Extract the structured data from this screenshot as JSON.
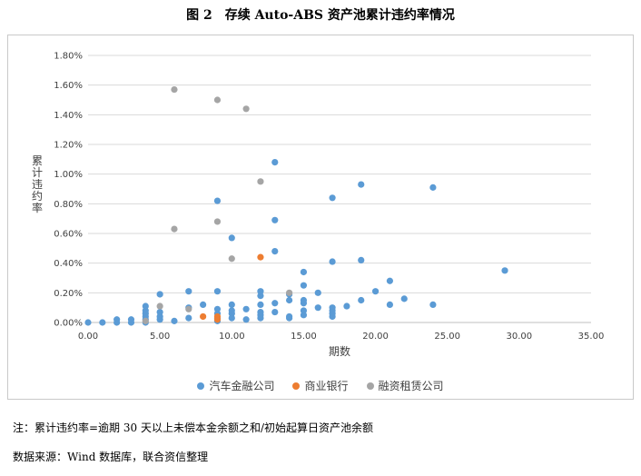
{
  "title": "图 2　存续 Auto-ABS 资产池累计违约率情况",
  "note": "注：累计违约率=逾期 30 天以上未偿本金余额之和/初始起算日资产池余额",
  "source": "数据来源：Wind 数据库，联合资信整理",
  "chart_data": {
    "type": "scatter",
    "title": "",
    "xlabel": "期数",
    "ylabel": "累计违约率",
    "xlim": [
      0,
      35
    ],
    "ylim": [
      0,
      1.8
    ],
    "x_ticks": [
      "0.00",
      "5.00",
      "10.00",
      "15.00",
      "20.00",
      "25.00",
      "30.00",
      "35.00"
    ],
    "y_ticks": [
      "0.00%",
      "0.20%",
      "0.40%",
      "0.60%",
      "0.80%",
      "1.00%",
      "1.20%",
      "1.40%",
      "1.60%",
      "1.80%"
    ],
    "grid": "horizontal",
    "legend_position": "bottom",
    "series": [
      {
        "name": "汽车金融公司",
        "color": "#5b9bd5",
        "points": [
          [
            0,
            0.0
          ],
          [
            1,
            0.0
          ],
          [
            2,
            0.0
          ],
          [
            2,
            0.02
          ],
          [
            3,
            0.0
          ],
          [
            3,
            0.02
          ],
          [
            4,
            0.0
          ],
          [
            4,
            0.02
          ],
          [
            4,
            0.04
          ],
          [
            4,
            0.06
          ],
          [
            4,
            0.08
          ],
          [
            4,
            0.11
          ],
          [
            5,
            0.02
          ],
          [
            5,
            0.04
          ],
          [
            5,
            0.07
          ],
          [
            5,
            0.19
          ],
          [
            6,
            0.01
          ],
          [
            7,
            0.03
          ],
          [
            7,
            0.1
          ],
          [
            7,
            0.21
          ],
          [
            8,
            0.12
          ],
          [
            9,
            0.01
          ],
          [
            9,
            0.03
          ],
          [
            9,
            0.06
          ],
          [
            9,
            0.09
          ],
          [
            9,
            0.21
          ],
          [
            9,
            0.82
          ],
          [
            10,
            0.03
          ],
          [
            10,
            0.06
          ],
          [
            10,
            0.08
          ],
          [
            10,
            0.12
          ],
          [
            10,
            0.57
          ],
          [
            11,
            0.02
          ],
          [
            11,
            0.09
          ],
          [
            12,
            0.03
          ],
          [
            12,
            0.05
          ],
          [
            12,
            0.07
          ],
          [
            12,
            0.12
          ],
          [
            12,
            0.18
          ],
          [
            12,
            0.21
          ],
          [
            13,
            0.07
          ],
          [
            13,
            0.13
          ],
          [
            13,
            0.48
          ],
          [
            13,
            0.69
          ],
          [
            13,
            1.08
          ],
          [
            14,
            0.03
          ],
          [
            14,
            0.04
          ],
          [
            14,
            0.15
          ],
          [
            14,
            0.19
          ],
          [
            15,
            0.05
          ],
          [
            15,
            0.08
          ],
          [
            15,
            0.13
          ],
          [
            15,
            0.15
          ],
          [
            15,
            0.25
          ],
          [
            15,
            0.34
          ],
          [
            16,
            0.1
          ],
          [
            16,
            0.2
          ],
          [
            17,
            0.04
          ],
          [
            17,
            0.06
          ],
          [
            17,
            0.08
          ],
          [
            17,
            0.1
          ],
          [
            17,
            0.41
          ],
          [
            17,
            0.84
          ],
          [
            18,
            0.11
          ],
          [
            19,
            0.15
          ],
          [
            19,
            0.42
          ],
          [
            19,
            0.93
          ],
          [
            20,
            0.21
          ],
          [
            21,
            0.12
          ],
          [
            21,
            0.28
          ],
          [
            22,
            0.16
          ],
          [
            24,
            0.12
          ],
          [
            24,
            0.91
          ],
          [
            29,
            0.35
          ]
        ]
      },
      {
        "name": "商业银行",
        "color": "#ed7d31",
        "points": [
          [
            8,
            0.04
          ],
          [
            9,
            0.02
          ],
          [
            9,
            0.04
          ],
          [
            12,
            0.44
          ]
        ]
      },
      {
        "name": "融资租赁公司",
        "color": "#a5a5a5",
        "points": [
          [
            4,
            0.01
          ],
          [
            5,
            0.11
          ],
          [
            6,
            0.63
          ],
          [
            6,
            1.57
          ],
          [
            7,
            0.09
          ],
          [
            9,
            0.68
          ],
          [
            9,
            1.5
          ],
          [
            10,
            0.43
          ],
          [
            11,
            1.44
          ],
          [
            12,
            0.95
          ],
          [
            14,
            0.2
          ]
        ]
      }
    ]
  }
}
